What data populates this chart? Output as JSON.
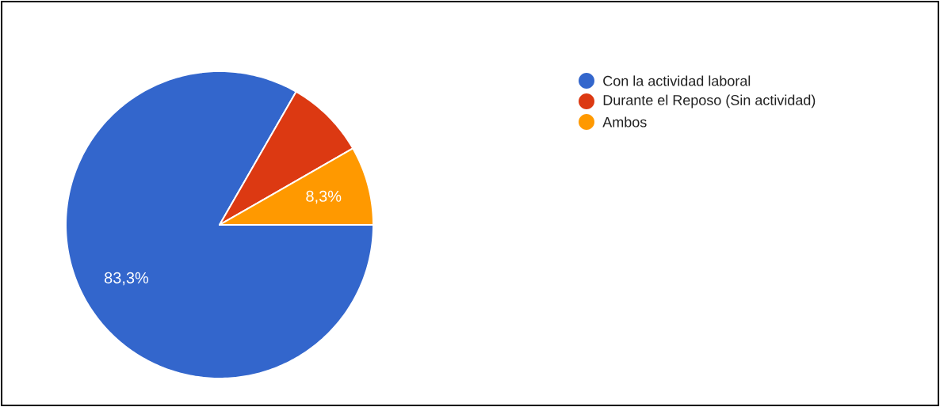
{
  "chart_data": {
    "type": "pie",
    "categories": [
      "Con la actividad laboral",
      "Durante el Reposo (Sin actividad)",
      "Ambos"
    ],
    "values": [
      83.3,
      8.4,
      8.3
    ],
    "colors": [
      "#3366cc",
      "#dc3912",
      "#ff9900"
    ],
    "value_labels": [
      "83,3%",
      null,
      "8,3%"
    ],
    "legend": "top right"
  }
}
